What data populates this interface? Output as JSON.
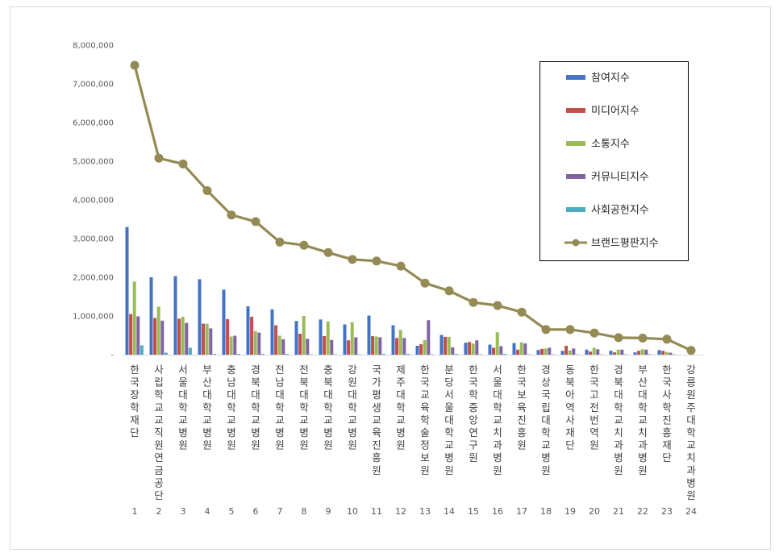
{
  "chart_data": {
    "type": "bar",
    "categories": [
      "한국장학재단",
      "사립학교교직원연금공단",
      "서울대학교병원",
      "부산대학교병원",
      "충남대학교병원",
      "경북대학교병원",
      "전남대학교병원",
      "전북대학교병원",
      "충북대학교병원",
      "강원대학교병원",
      "국가평생교육진흥원",
      "제주대학교병원",
      "한국교육학술정보원",
      "분당서울대학교병원",
      "한국학중앙연구원",
      "서울대학교치과병원",
      "한국보육진흥원",
      "경상국립대학교병원",
      "동북아역사재단",
      "한국고전번역원",
      "경북대학교치과병원",
      "부산대학교치과병원",
      "한국사학진흥재단",
      "강릉원주대학교치과병원"
    ],
    "x_numbers": [
      "1",
      "2",
      "3",
      "4",
      "5",
      "6",
      "7",
      "8",
      "9",
      "10",
      "11",
      "12",
      "13",
      "14",
      "15",
      "16",
      "17",
      "18",
      "19",
      "20",
      "21",
      "22",
      "23",
      "24"
    ],
    "series": [
      {
        "name": "참여지수",
        "kind": "bar",
        "color": "#4472c4",
        "values": [
          3300000,
          2000000,
          2030000,
          1950000,
          1680000,
          1250000,
          1170000,
          870000,
          910000,
          780000,
          1010000,
          760000,
          230000,
          510000,
          310000,
          260000,
          300000,
          120000,
          100000,
          130000,
          100000,
          60000,
          120000,
          0
        ]
      },
      {
        "name": "미디어지수",
        "kind": "bar",
        "color": "#c0504d",
        "values": [
          1050000,
          950000,
          930000,
          800000,
          920000,
          980000,
          760000,
          540000,
          480000,
          370000,
          480000,
          430000,
          270000,
          460000,
          330000,
          180000,
          130000,
          150000,
          230000,
          80000,
          60000,
          100000,
          100000,
          0
        ]
      },
      {
        "name": "소통지수",
        "kind": "bar",
        "color": "#9bbb59",
        "values": [
          1890000,
          1240000,
          980000,
          800000,
          470000,
          610000,
          490000,
          1000000,
          860000,
          840000,
          470000,
          640000,
          380000,
          460000,
          290000,
          580000,
          320000,
          160000,
          110000,
          180000,
          130000,
          140000,
          70000,
          0
        ]
      },
      {
        "name": "커뮤니티지수",
        "kind": "bar",
        "color": "#8064a2",
        "values": [
          990000,
          880000,
          820000,
          680000,
          490000,
          570000,
          400000,
          410000,
          380000,
          450000,
          450000,
          430000,
          890000,
          190000,
          370000,
          220000,
          290000,
          180000,
          160000,
          140000,
          130000,
          130000,
          50000,
          0
        ]
      },
      {
        "name": "사회공헌지수",
        "kind": "bar",
        "color": "#4bacc6",
        "values": [
          240000,
          50000,
          180000,
          20000,
          20000,
          20000,
          20000,
          10000,
          10000,
          10000,
          20000,
          20000,
          10000,
          20000,
          10000,
          20000,
          10000,
          10000,
          10000,
          10000,
          10000,
          10000,
          10000,
          0
        ]
      },
      {
        "name": "브랜드평판지수",
        "kind": "line",
        "color": "#948a54",
        "values": [
          7480000,
          5080000,
          4930000,
          4240000,
          3610000,
          3440000,
          2910000,
          2830000,
          2640000,
          2460000,
          2420000,
          2290000,
          1850000,
          1650000,
          1350000,
          1270000,
          1100000,
          650000,
          650000,
          560000,
          440000,
          430000,
          400000,
          110000
        ]
      }
    ],
    "y_ticks": [
      "8,000,000",
      "7,000,000",
      "6,000,000",
      "5,000,000",
      "4,000,000",
      "3,000,000",
      "2,000,000",
      "1,000,000",
      "-"
    ],
    "ylim": [
      0,
      8000000
    ],
    "legend_position": "top-right",
    "grid": false
  }
}
